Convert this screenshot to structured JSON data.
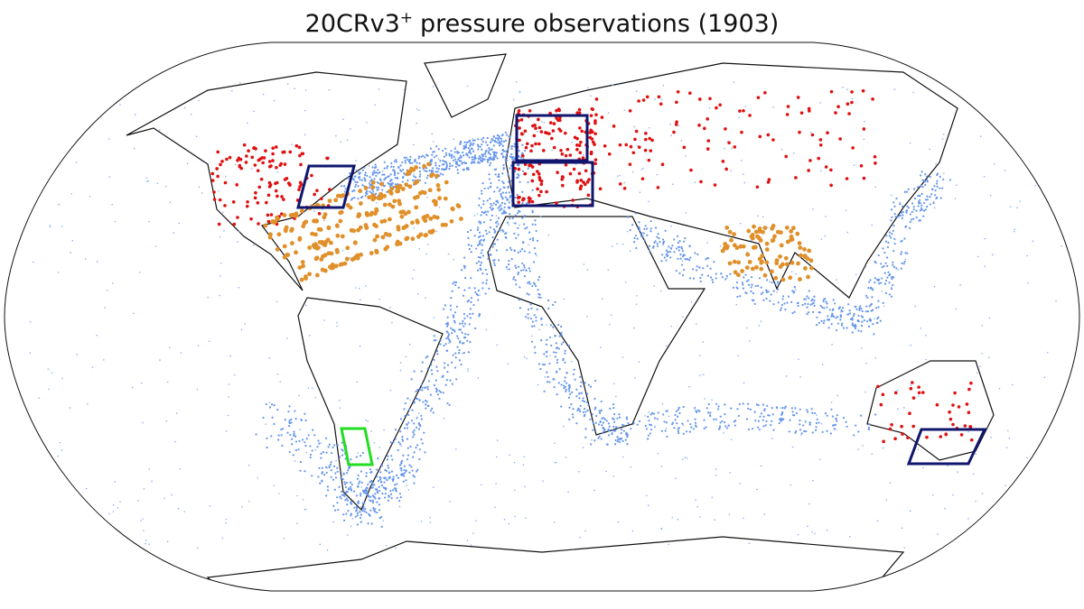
{
  "title": {
    "main": "20CRv3",
    "superscript": "+",
    "rest": "pressure observations (1903)"
  }
}
